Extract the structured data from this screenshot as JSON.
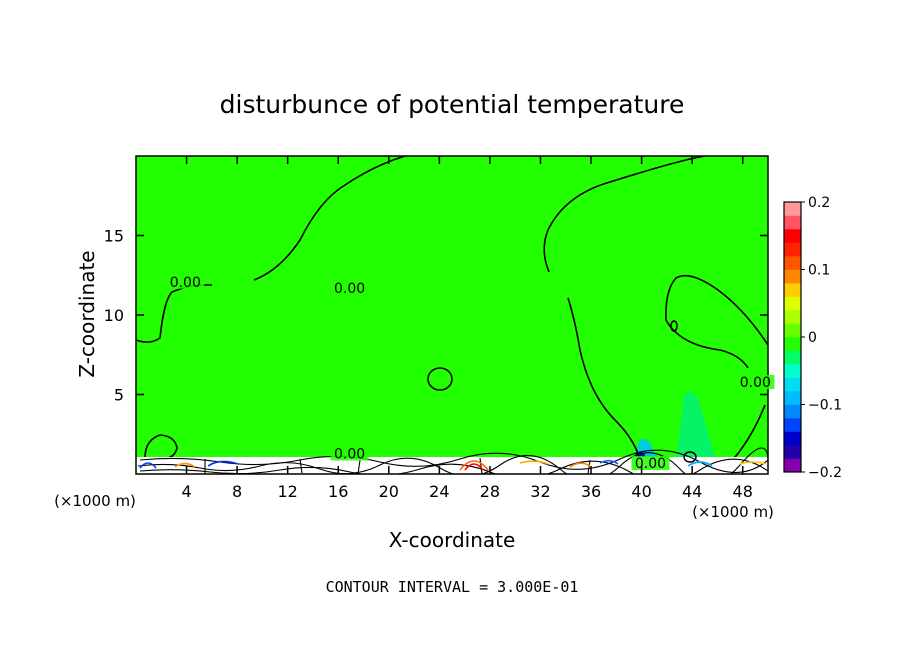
{
  "chart_data": {
    "type": "heatmap",
    "title": "disturbunce of potential temperature",
    "xlabel": "X-coordinate",
    "ylabel": "Z-coordinate",
    "x_unit": "(×1000 m)",
    "z_unit": "(×1000 m)",
    "xlim": [
      0,
      50
    ],
    "ylim": [
      0,
      20
    ],
    "x_ticks": [
      4,
      8,
      12,
      16,
      20,
      24,
      28,
      32,
      36,
      40,
      44,
      48
    ],
    "y_ticks": [
      5,
      10,
      15
    ],
    "contour_interval_text": "CONTOUR INTERVAL = 3.000E-01",
    "contour_labels": [
      {
        "text": "0.00",
        "x": 3.9,
        "z": 11.9
      },
      {
        "text": "0.00",
        "x": 16.9,
        "z": 1.1
      },
      {
        "text": "0.00",
        "x": 16.9,
        "z": 11.5
      },
      {
        "text": "0.00",
        "x": 49.0,
        "z": 5.6
      },
      {
        "text": "0.00",
        "x": 40.7,
        "z": 0.5
      }
    ],
    "colorbar": {
      "min": -0.2,
      "max": 0.2,
      "tick_values": [
        0.2,
        0.1,
        0,
        -0.1,
        -0.2
      ],
      "tick_labels": [
        "0.2",
        "0.1",
        "0",
        "−0.1",
        "−0.2"
      ],
      "colors": [
        "#8800aa",
        "#2200aa",
        "#0000cc",
        "#0044ff",
        "#0088ff",
        "#00bbff",
        "#00ddee",
        "#00ffcc",
        "#00ff66",
        "#22ff00",
        "#66ff00",
        "#aaff00",
        "#ddff00",
        "#ffcc00",
        "#ff8800",
        "#ff5500",
        "#ff2200",
        "#ff0000",
        "#ff5566",
        "#ff9999"
      ]
    },
    "background_value": 0
  }
}
